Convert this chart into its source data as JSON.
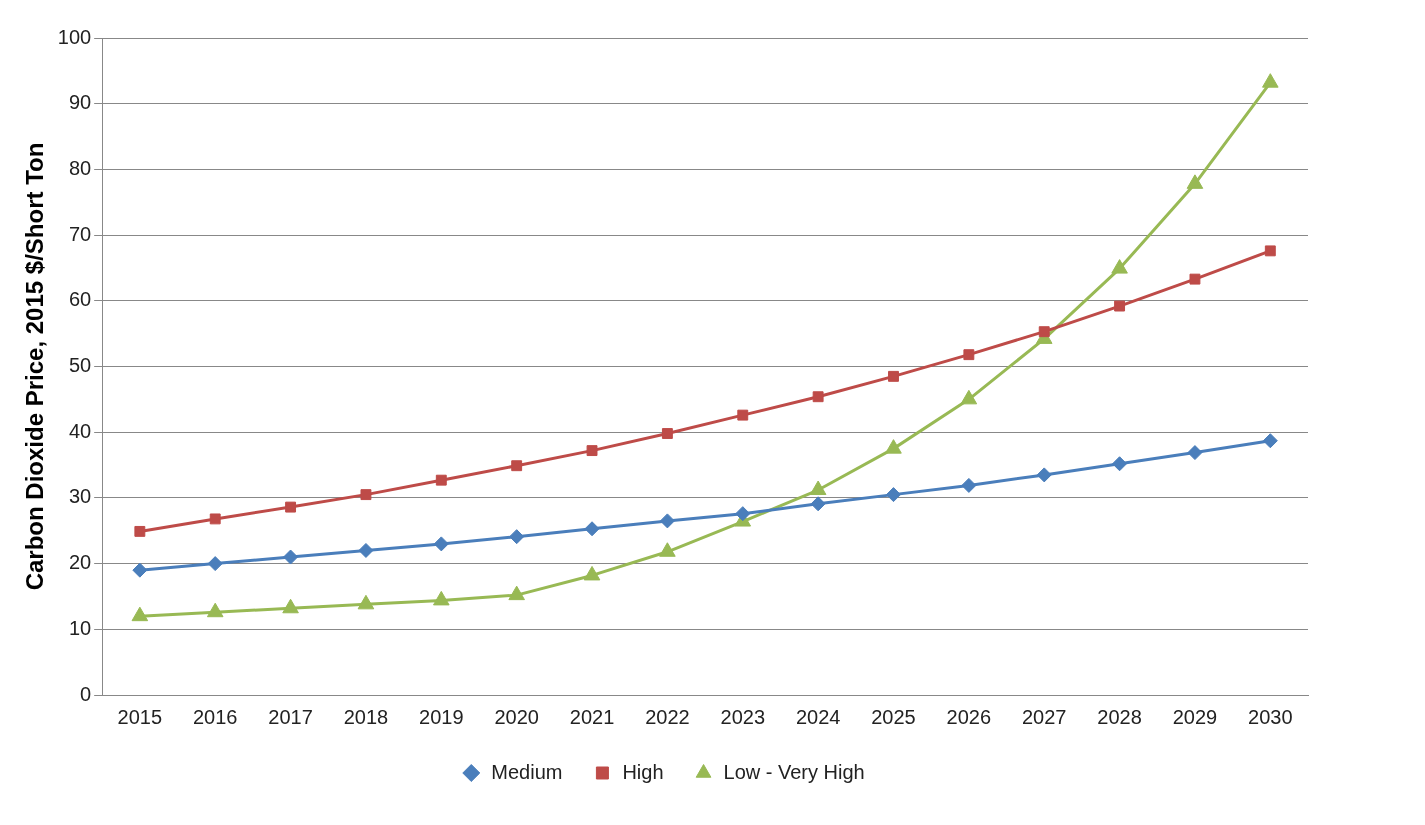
{
  "chart_data": {
    "type": "line",
    "ylabel": "Carbon Dioxide Price, 2015 $/Short Ton",
    "categories": [
      "2015",
      "2016",
      "2017",
      "2018",
      "2019",
      "2020",
      "2021",
      "2022",
      "2023",
      "2024",
      "2025",
      "2026",
      "2027",
      "2028",
      "2029",
      "2030"
    ],
    "series": [
      {
        "name": "Medium",
        "color": "#4a7ebb",
        "marker": "diamond",
        "values": [
          19.0,
          20.0,
          21.0,
          22.0,
          23.0,
          24.1,
          25.3,
          26.5,
          27.6,
          29.1,
          30.5,
          31.9,
          33.5,
          35.2,
          36.9,
          38.7
        ]
      },
      {
        "name": "High",
        "color": "#be4b48",
        "marker": "square",
        "values": [
          24.9,
          26.8,
          28.6,
          30.5,
          32.7,
          34.9,
          37.2,
          39.8,
          42.6,
          45.4,
          48.5,
          51.8,
          55.3,
          59.2,
          63.3,
          67.6
        ]
      },
      {
        "name": "Low - Very High",
        "color": "#98b954",
        "marker": "triangle",
        "values": [
          12.0,
          12.6,
          13.2,
          13.8,
          14.4,
          15.2,
          18.2,
          21.8,
          26.4,
          31.2,
          37.5,
          45.0,
          54.2,
          64.9,
          77.8,
          93.2
        ]
      }
    ],
    "ylim": [
      0,
      100
    ],
    "yticks": [
      0,
      10,
      20,
      30,
      40,
      50,
      60,
      70,
      80,
      90,
      100
    ],
    "grid": "y",
    "legend": "bottom",
    "line_style": "solid"
  }
}
